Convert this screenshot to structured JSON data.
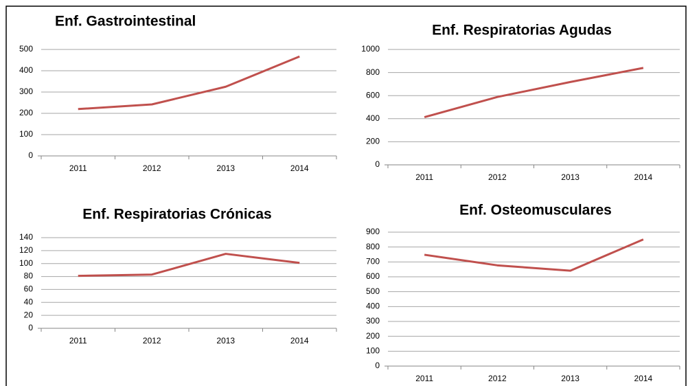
{
  "chart_data": [
    {
      "type": "line",
      "title": "Enf. Gastrointestinal",
      "categories": [
        "2011",
        "2012",
        "2013",
        "2014"
      ],
      "values": [
        220,
        242,
        325,
        467
      ],
      "color": "#c0504d",
      "ylim": [
        0,
        500
      ],
      "yticks": [
        0,
        100,
        200,
        300,
        400,
        500
      ],
      "grid": true
    },
    {
      "type": "line",
      "title": "Enf. Respiratorias Agudas",
      "categories": [
        "2011",
        "2012",
        "2013",
        "2014"
      ],
      "values": [
        413,
        588,
        718,
        840
      ],
      "color": "#c0504d",
      "ylim": [
        0,
        1000
      ],
      "yticks": [
        0,
        200,
        400,
        600,
        800,
        1000
      ],
      "grid": true
    },
    {
      "type": "line",
      "title": "Enf. Respiratorias Crónicas",
      "categories": [
        "2011",
        "2012",
        "2013",
        "2014"
      ],
      "values": [
        81,
        83,
        115,
        101
      ],
      "color": "#c0504d",
      "ylim": [
        0,
        140
      ],
      "yticks": [
        0,
        20,
        40,
        60,
        80,
        100,
        120,
        140
      ],
      "grid": true
    },
    {
      "type": "line",
      "title": "Enf. Osteomusculares",
      "categories": [
        "2011",
        "2012",
        "2013",
        "2014"
      ],
      "values": [
        748,
        677,
        641,
        851
      ],
      "color": "#c0504d",
      "ylim": [
        0,
        900
      ],
      "yticks": [
        0,
        100,
        200,
        300,
        400,
        500,
        600,
        700,
        800,
        900
      ],
      "grid": true
    }
  ]
}
